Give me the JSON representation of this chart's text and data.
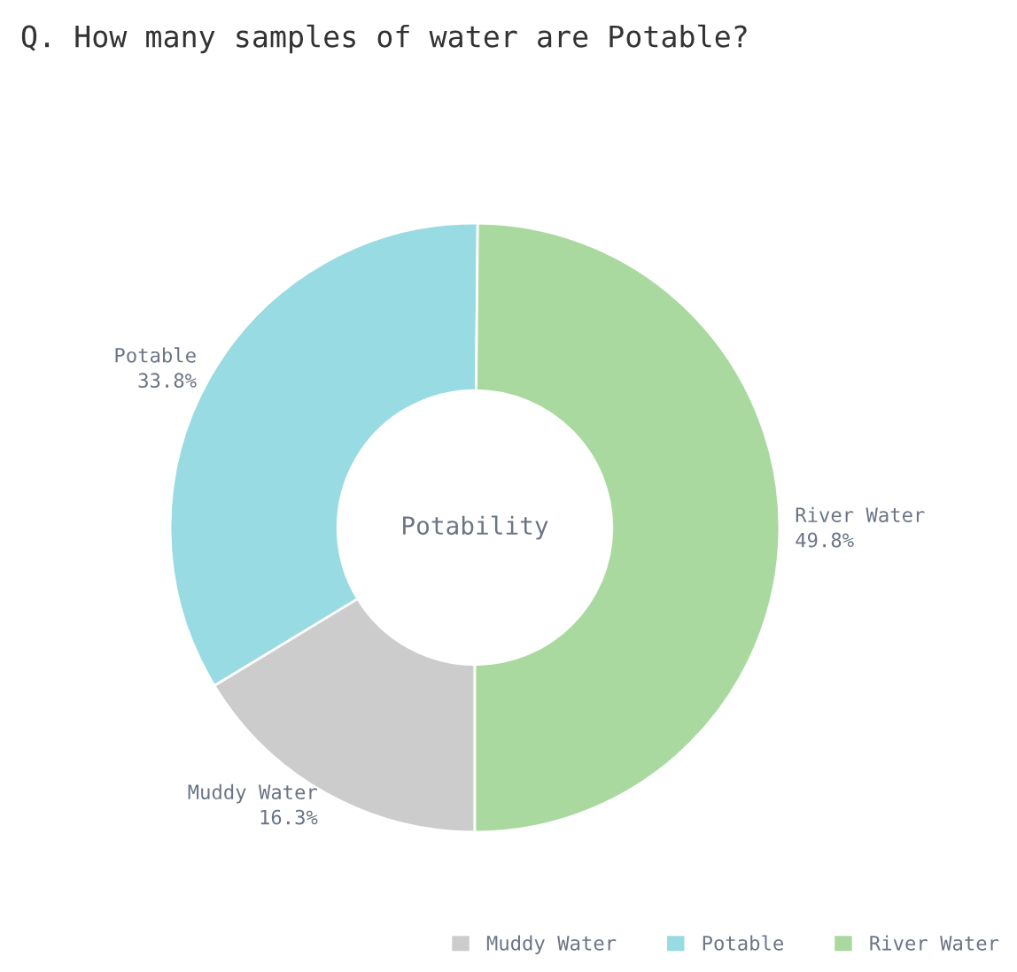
{
  "chart_data": {
    "type": "donut",
    "title": "Q. How many samples of water are Potable?",
    "categories": [
      "Muddy Water",
      "Potable",
      "River Water"
    ],
    "values": [
      16.3,
      33.8,
      49.8
    ],
    "colors": [
      "#cccccc",
      "#99dbe3",
      "#aad9a0"
    ],
    "value_labels": [
      "16.3%",
      "33.8%",
      "49.8%"
    ],
    "annotations": [
      "Potability"
    ],
    "legend": "bottom right"
  }
}
